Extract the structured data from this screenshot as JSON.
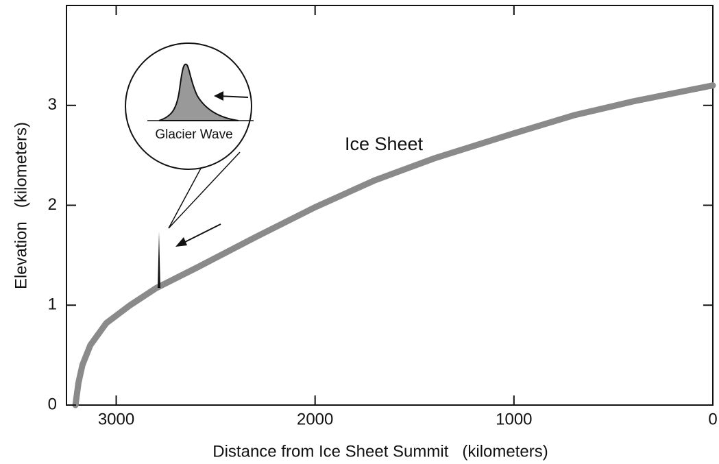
{
  "chart_data": {
    "type": "line",
    "x_label": "Distance from Ice Sheet Summit   (kilometers)",
    "y_label": "Elevation   (kilometers)",
    "annotations": [
      "Ice Sheet",
      "Glacier Wave"
    ],
    "x": [
      3205,
      3190,
      3170,
      3130,
      3050,
      2930,
      2800,
      2600,
      2300,
      2000,
      1700,
      1400,
      1000,
      700,
      400,
      0
    ],
    "series": [
      {
        "name": "Ice Sheet",
        "color": "#8a8a8a",
        "values": [
          0,
          0.22,
          0.4,
          0.6,
          0.82,
          1.0,
          1.17,
          1.37,
          1.68,
          1.98,
          2.25,
          2.47,
          2.72,
          2.9,
          3.04,
          3.2
        ]
      }
    ],
    "xlim": [
      3250,
      0
    ],
    "xticks": [
      3000,
      2000,
      1000,
      0
    ],
    "ylim": [
      0,
      4
    ],
    "yticks": [
      0,
      1,
      2,
      3
    ]
  }
}
